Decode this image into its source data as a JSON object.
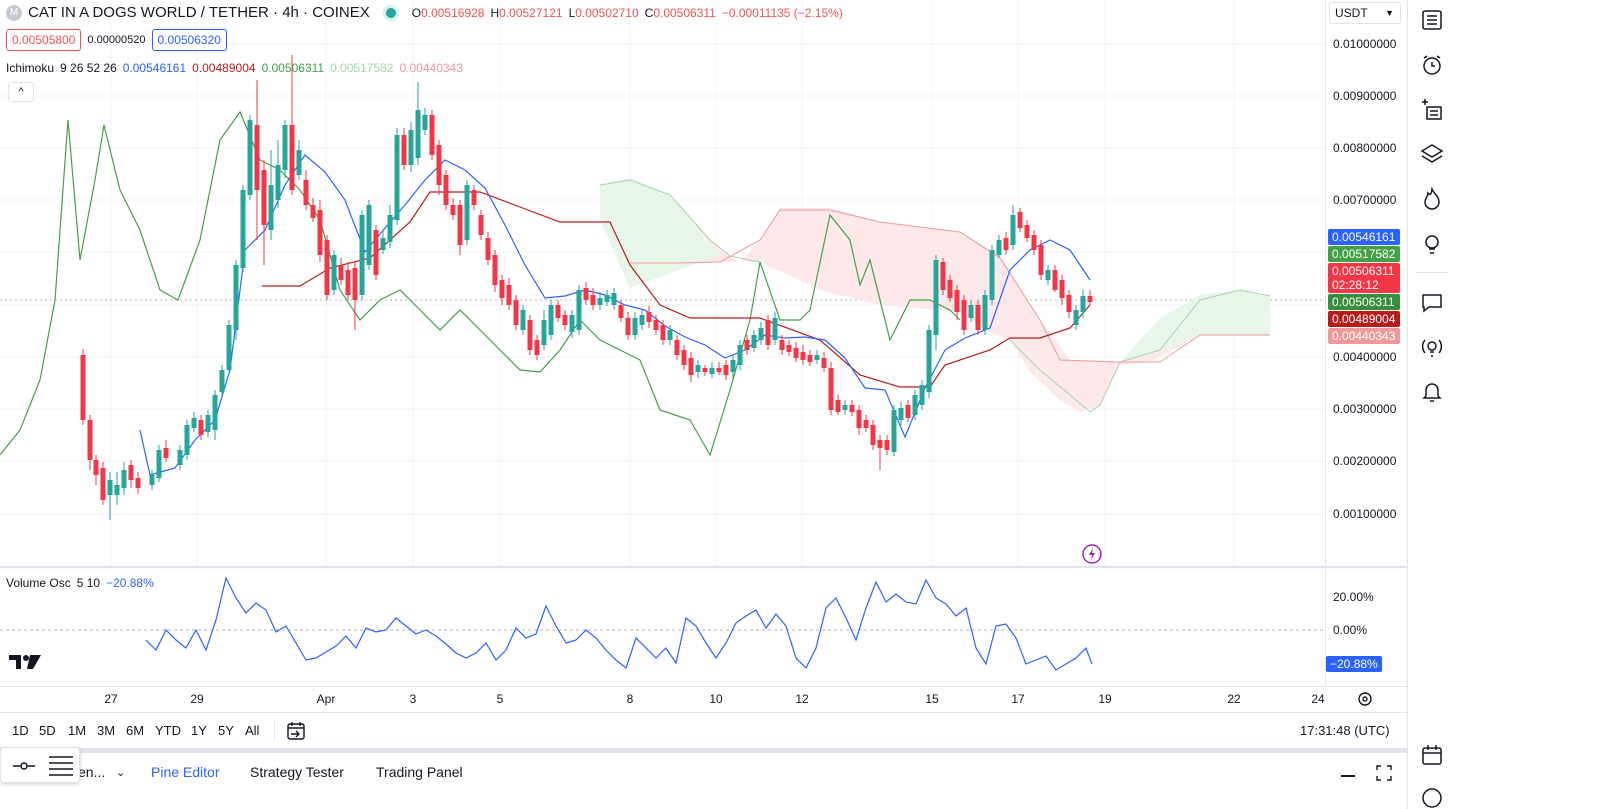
{
  "header": {
    "logo_letter": "M",
    "symbol": "CAT IN A DOGS WORLD / TETHER · 4h · COINEX",
    "ohlc": [
      {
        "k": "O",
        "v": "0.00516928"
      },
      {
        "k": "H",
        "v": "0.00527121"
      },
      {
        "k": "L",
        "v": "0.00502710"
      },
      {
        "k": "C",
        "v": "0.00506311"
      },
      {
        "k": "",
        "v": "−0.00011135 (−2.15%)"
      }
    ],
    "sell_price": "0.00505800",
    "spread": "0.00000520",
    "buy_price": "0.00506320",
    "collapse_icon": "chevron-up-icon"
  },
  "ichimoku": {
    "name": "Ichimoku",
    "params": "9 26 52 26",
    "values": [
      "0.00546161",
      "0.00489004",
      "0.00506311",
      "0.00517582",
      "0.00440343"
    ],
    "colors": [
      "#2962ff",
      "#b71c1c",
      "#43a047",
      "#a5d6a7",
      "#ef9a9a"
    ]
  },
  "currency_select": "USDT",
  "price_scale": {
    "ticks": [
      "0.01000000",
      "0.00900000",
      "0.00800000",
      "0.00700000",
      "0.00400000",
      "0.00300000",
      "0.00200000",
      "0.00100000"
    ],
    "labels": [
      {
        "text": "0.00546161",
        "color": "#2962ff"
      },
      {
        "text": "0.00517582",
        "color": "#43a047"
      },
      {
        "text": "0.00506311",
        "color": "#f23645"
      },
      {
        "text": "02:28:12",
        "color": "#f23645"
      },
      {
        "text": "0.00506311",
        "color": "#388e3c"
      },
      {
        "text": "0.00489004",
        "color": "#b71c1c"
      },
      {
        "text": "0.00440343",
        "color": "#ef9a9a"
      }
    ]
  },
  "volume_osc": {
    "name": "Volume Osc",
    "params": "5 10",
    "value": "−20.88%",
    "ticks": [
      "20.00%",
      "0.00%"
    ],
    "label": "−20.88%"
  },
  "time_axis": {
    "labels": [
      "27",
      "29",
      "Apr",
      "3",
      "5",
      "8",
      "10",
      "12",
      "15",
      "17",
      "19",
      "22",
      "24"
    ]
  },
  "bottom_toolbar": {
    "ranges": [
      "1D",
      "5D",
      "1M",
      "3M",
      "6M",
      "YTD",
      "1Y",
      "5Y",
      "All"
    ],
    "clock": "17:31:48 (UTC)"
  },
  "panel_tabs": [
    "en...",
    "Pine Editor",
    "Strategy Tester",
    "Trading Panel"
  ],
  "colors": {
    "up": "#26a69a",
    "down": "#f23645",
    "tenkan": "#2962ff",
    "kijun": "#b71c1c",
    "chikou": "#43a047",
    "cloud_up": "#e8f5e9",
    "cloud_down": "#fde7e7",
    "osc": "#2962ff"
  },
  "right_toolbar_icons": [
    "watchlist-icon",
    "alarm-icon",
    "add-list-icon",
    "layers-icon",
    "hotlist-icon",
    "ideas-icon",
    "chat-icon",
    "broadcast-icon",
    "bell-icon",
    "calendar-icon",
    "help-icon"
  ]
}
